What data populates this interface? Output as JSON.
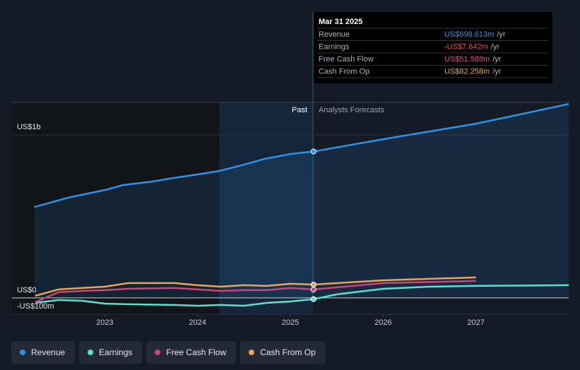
{
  "chart_data": {
    "type": "line",
    "xlim": [
      2022,
      2028
    ],
    "xticks": [
      2023,
      2024,
      2025,
      2026,
      2027
    ],
    "ylim": [
      -100,
      1200
    ],
    "yticks": [
      {
        "value": 1000,
        "label": "US$1b"
      },
      {
        "value": 0,
        "label": "US$0"
      },
      {
        "value": -100,
        "label": "-US$100m"
      }
    ],
    "past_label": "Past",
    "forecast_label": "Analysts Forecasts",
    "series": [
      {
        "name": "Revenue",
        "color": "#2e93e6",
        "x": [
          2022.24,
          2022.63,
          2023,
          2023.2,
          2023.51,
          2023.74,
          2024,
          2024.23,
          2024.5,
          2024.72,
          2025,
          2025.25,
          2026,
          2027,
          2028
        ],
        "values": [
          558,
          619,
          662,
          693,
          714,
          736,
          758,
          779,
          818,
          853,
          883,
          898.613,
          974,
          1069,
          1190
        ]
      },
      {
        "name": "Earnings",
        "color": "#5ce1d0",
        "x": [
          2022.25,
          2022.5,
          2022.75,
          2023,
          2023.25,
          2023.75,
          2024,
          2024.25,
          2024.5,
          2024.75,
          2025,
          2025.25,
          2025.5,
          2026,
          2026.5,
          2027,
          2028
        ],
        "values": [
          -30,
          -13,
          -17,
          -35,
          -39,
          -43,
          -48,
          -43,
          -48,
          -30,
          -22,
          -7.642,
          22,
          56,
          69,
          74,
          78
        ]
      },
      {
        "name": "Free Cash Flow",
        "color": "#c9457a",
        "x": [
          2022.25,
          2022.5,
          2022.75,
          2023,
          2023.25,
          2023.75,
          2024,
          2024.25,
          2024.5,
          2024.75,
          2025,
          2025.25,
          2026,
          2027
        ],
        "values": [
          -26,
          35,
          43,
          48,
          56,
          61,
          52,
          43,
          48,
          48,
          61,
          51.588,
          91,
          104
        ]
      },
      {
        "name": "Cash From Op",
        "color": "#e7a65a",
        "x": [
          2022.25,
          2022.5,
          2022.75,
          2023,
          2023.25,
          2023.75,
          2024,
          2024.25,
          2024.5,
          2024.75,
          2025,
          2025.25,
          2026,
          2027
        ],
        "values": [
          13,
          52,
          61,
          69,
          91,
          91,
          78,
          69,
          78,
          74,
          87,
          82.258,
          108,
          126
        ]
      }
    ],
    "tooltip": {
      "date": "Mar 31 2025",
      "unit": "/yr",
      "values": [
        {
          "value": 898.613,
          "label": "US$898.613m"
        },
        {
          "value": -7.642,
          "label": "-US$7.642m"
        },
        {
          "value": 51.588,
          "label": "US$51.588m"
        },
        {
          "value": 82.258,
          "label": "US$82.258m"
        }
      ],
      "colors": [
        "#2e93e6",
        "#e0505a",
        "#d8508a",
        "#e7a65a"
      ]
    }
  }
}
